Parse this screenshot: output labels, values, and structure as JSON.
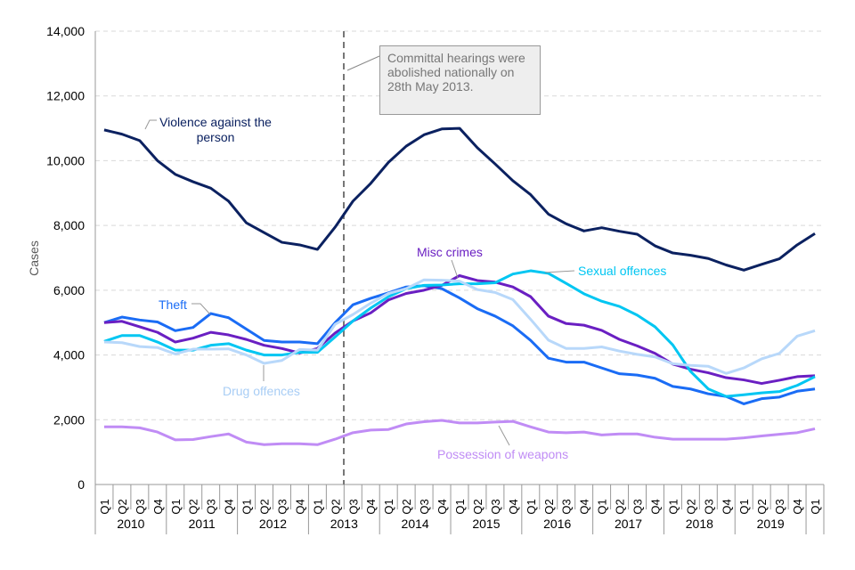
{
  "chart_data": {
    "type": "line",
    "ylabel": "Cases",
    "ylim": [
      0,
      14000
    ],
    "yticks": [
      "0",
      "2,000",
      "4,000",
      "6,000",
      "8,000",
      "10,000",
      "12,000",
      "14,000"
    ],
    "grid": true,
    "quarters": [
      "Q1",
      "Q2",
      "Q3",
      "Q4",
      "Q1",
      "Q2",
      "Q3",
      "Q4",
      "Q1",
      "Q2",
      "Q3",
      "Q4",
      "Q1",
      "Q2",
      "Q3",
      "Q4",
      "Q1",
      "Q2",
      "Q3",
      "Q4",
      "Q1",
      "Q2",
      "Q3",
      "Q4",
      "Q1",
      "Q2",
      "Q3",
      "Q4",
      "Q1",
      "Q2",
      "Q3",
      "Q4",
      "Q1",
      "Q2",
      "Q3",
      "Q4",
      "Q1",
      "Q2",
      "Q3",
      "Q4",
      "Q1"
    ],
    "years": [
      "2010",
      "2011",
      "2012",
      "2013",
      "2014",
      "2015",
      "2016",
      "2017",
      "2018",
      "2019"
    ],
    "annotation": "Committal hearings were abolished nationally on 28th May 2013.",
    "series": [
      {
        "name": "Violence against the person",
        "color": "#0b2160",
        "values": [
          10950,
          10820,
          10620,
          10000,
          9580,
          9350,
          9150,
          8750,
          8080,
          7780,
          7480,
          7400,
          7260,
          7950,
          8750,
          9300,
          9950,
          10450,
          10800,
          10980,
          11000,
          10400,
          9900,
          9380,
          8950,
          8350,
          8050,
          7830,
          7930,
          7820,
          7730,
          7370,
          7150,
          7080,
          6980,
          6780,
          6620,
          6800,
          6970,
          7400,
          7750
        ]
      },
      {
        "name": "Theft",
        "color": "#1a6cf5",
        "values": [
          5000,
          5170,
          5080,
          5020,
          4750,
          4850,
          5280,
          5150,
          4800,
          4450,
          4400,
          4400,
          4350,
          5000,
          5550,
          5750,
          5920,
          6100,
          6140,
          6050,
          5760,
          5430,
          5200,
          4900,
          4450,
          3900,
          3780,
          3780,
          3600,
          3420,
          3380,
          3280,
          3030,
          2950,
          2800,
          2720,
          2490,
          2650,
          2700,
          2880,
          2950
        ]
      },
      {
        "name": "Misc crimes",
        "color": "#6a1fc2",
        "values": [
          5000,
          5040,
          4870,
          4700,
          4400,
          4520,
          4700,
          4620,
          4480,
          4300,
          4200,
          4060,
          4200,
          4680,
          5050,
          5300,
          5700,
          5900,
          6000,
          6150,
          6450,
          6300,
          6250,
          6100,
          5800,
          5200,
          4970,
          4920,
          4760,
          4480,
          4280,
          4050,
          3720,
          3560,
          3450,
          3300,
          3230,
          3120,
          3220,
          3330,
          3360
        ]
      },
      {
        "name": "Sexual offences",
        "color": "#00c6f2",
        "values": [
          4420,
          4600,
          4600,
          4400,
          4150,
          4150,
          4300,
          4350,
          4150,
          4000,
          4000,
          4080,
          4080,
          4560,
          5050,
          5450,
          5800,
          6050,
          6150,
          6160,
          6200,
          6200,
          6230,
          6500,
          6600,
          6520,
          6210,
          5890,
          5660,
          5500,
          5230,
          4870,
          4310,
          3490,
          2950,
          2720,
          2770,
          2830,
          2870,
          3060,
          3330
        ]
      },
      {
        "name": "Drug offences",
        "color": "#b8d8fa",
        "values": [
          4400,
          4380,
          4260,
          4230,
          4030,
          4180,
          4180,
          4190,
          4000,
          3740,
          3830,
          4170,
          4150,
          4950,
          5250,
          5600,
          5900,
          6050,
          6320,
          6310,
          6280,
          6020,
          5930,
          5710,
          5100,
          4460,
          4200,
          4200,
          4250,
          4120,
          4020,
          3940,
          3730,
          3680,
          3650,
          3430,
          3600,
          3880,
          4050,
          4580,
          4750
        ]
      },
      {
        "name": "Possession of weapons",
        "color": "#c08cf5",
        "values": [
          1780,
          1780,
          1750,
          1620,
          1380,
          1390,
          1480,
          1560,
          1310,
          1230,
          1260,
          1260,
          1230,
          1400,
          1600,
          1680,
          1700,
          1870,
          1940,
          1980,
          1900,
          1900,
          1930,
          1950,
          1780,
          1620,
          1600,
          1620,
          1530,
          1560,
          1560,
          1460,
          1400,
          1400,
          1400,
          1400,
          1440,
          1500,
          1550,
          1600,
          1720
        ]
      }
    ]
  }
}
